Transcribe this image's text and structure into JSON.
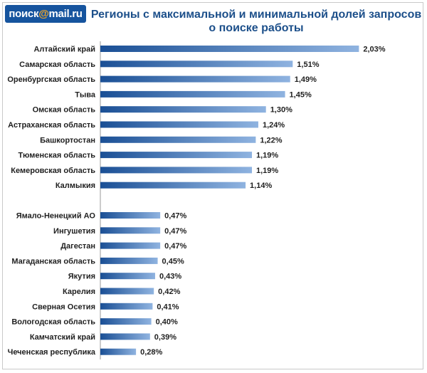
{
  "logo": {
    "prefix": "поиск",
    "at": "@",
    "suffix": "mail.ru"
  },
  "title_line1": "Регионы с максимальной и минимальной долей запросов",
  "title_line2": "о поиске работы",
  "chart_data": {
    "type": "bar",
    "orientation": "horizontal",
    "title": "Регионы с максимальной и минимальной долей запросов о поиске работы",
    "groups": [
      {
        "categories": [
          "Алтайский край",
          "Самарская область",
          "Оренбургская область",
          "Тыва",
          "Омская область",
          "Астраханская область",
          "Башкортостан",
          "Тюменская область",
          "Кемеровская область",
          "Калмыкия"
        ],
        "values": [
          2.03,
          1.51,
          1.49,
          1.45,
          1.3,
          1.24,
          1.22,
          1.19,
          1.19,
          1.14
        ],
        "labels": [
          "2,03%",
          "1,51%",
          "1,49%",
          "1,45%",
          "1,30%",
          "1,24%",
          "1,22%",
          "1,19%",
          "1,19%",
          "1,14%"
        ]
      },
      {
        "categories": [
          "Ямало-Ненецкий АО",
          "Ингушетия",
          "Дагестан",
          "Магаданская область",
          "Якутия",
          "Карелия",
          "Сверная Осетия",
          "Вологодская область",
          "Камчатский край",
          "Чеченская республика"
        ],
        "values": [
          0.47,
          0.47,
          0.47,
          0.45,
          0.43,
          0.42,
          0.41,
          0.4,
          0.39,
          0.28
        ],
        "labels": [
          "0,47%",
          "0,47%",
          "0,47%",
          "0,45%",
          "0,43%",
          "0,42%",
          "0,41%",
          "0,40%",
          "0,39%",
          "0,28%"
        ]
      }
    ],
    "unit": "%",
    "colors": {
      "bar_dark": "#1a4f95",
      "bar_light": "#8fb3e0"
    },
    "grid": false,
    "legend": "none"
  }
}
